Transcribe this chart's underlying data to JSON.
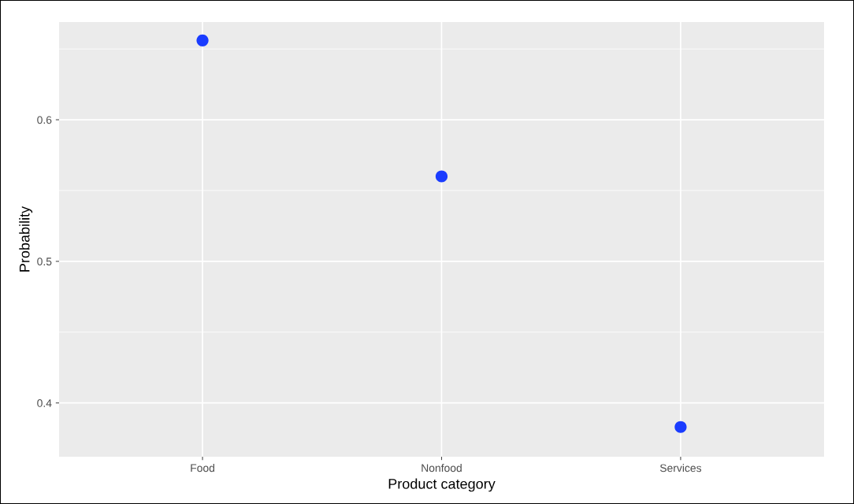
{
  "chart_data": {
    "type": "scatter",
    "xlabel": "Product category",
    "ylabel": "Probability",
    "categories": [
      "Food",
      "Nonfood",
      "Services"
    ],
    "values": [
      0.656,
      0.56,
      0.383
    ],
    "color": "#1a3cff",
    "marker": "circle",
    "ylim": [
      0.362,
      0.669
    ],
    "yticks": [
      0.4,
      0.5,
      0.6
    ],
    "grid": true
  }
}
